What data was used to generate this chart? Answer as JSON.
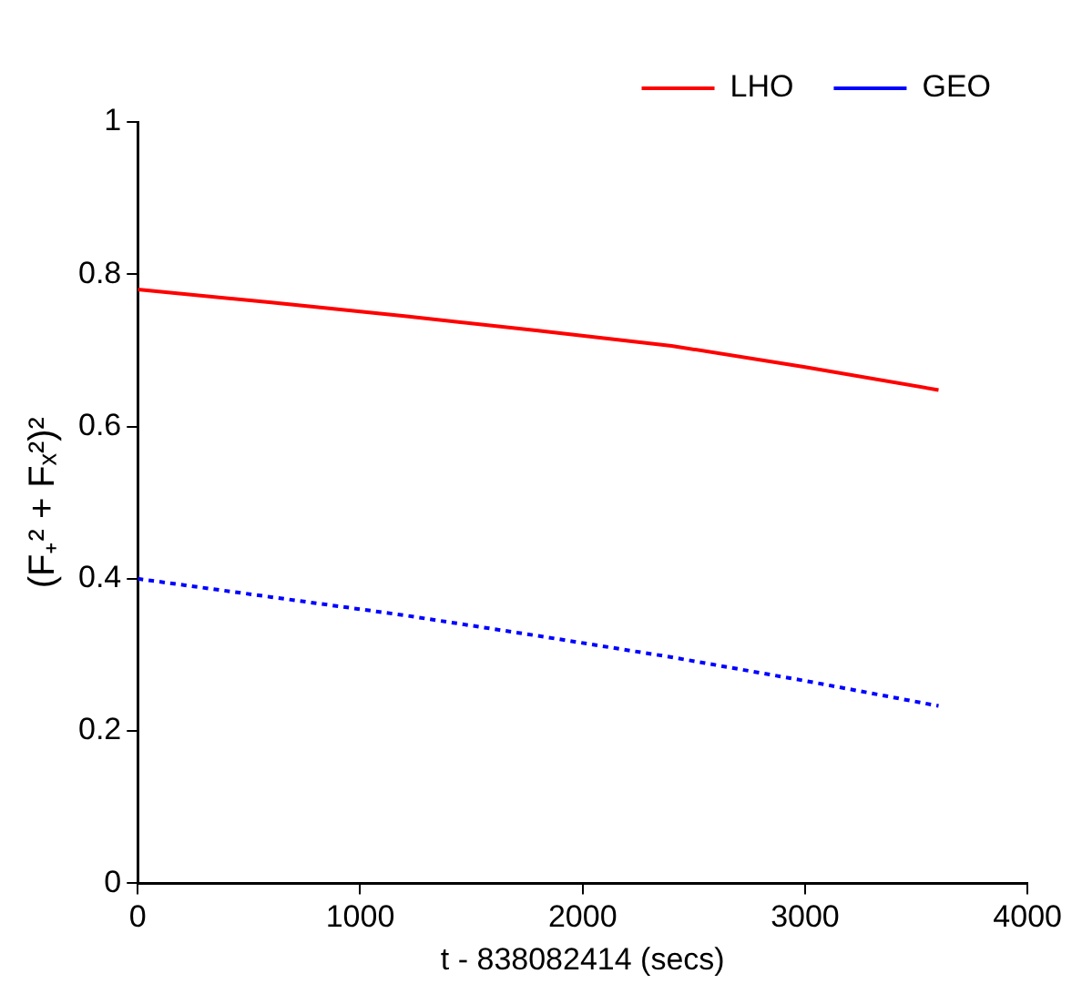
{
  "chart_data": {
    "type": "line",
    "xlabel": "t - 838082414 (secs)",
    "ylabel": "(F₊² + Fₓ²)²",
    "xlim": [
      0,
      4000
    ],
    "xticks": [
      0,
      1000,
      2000,
      3000,
      4000
    ],
    "ylim": [
      0,
      1
    ],
    "yticks": [
      0,
      0.2,
      0.4,
      0.6,
      0.8,
      1
    ],
    "grid": false,
    "legend": "top right",
    "marker": "none",
    "series": [
      {
        "name": "LHO",
        "color": "#ff0000",
        "line_style": "solid",
        "x": [
          0,
          600,
          1200,
          1800,
          2400,
          3000,
          3600
        ],
        "values": [
          0.78,
          0.763,
          0.745,
          0.726,
          0.706,
          0.678,
          0.648
        ]
      },
      {
        "name": "GEO",
        "color": "#0000ff",
        "line_style": "dotted",
        "x": [
          0,
          600,
          1200,
          1800,
          2400,
          3000,
          3600
        ],
        "values": [
          0.4,
          0.376,
          0.352,
          0.325,
          0.297,
          0.266,
          0.233
        ]
      }
    ]
  }
}
